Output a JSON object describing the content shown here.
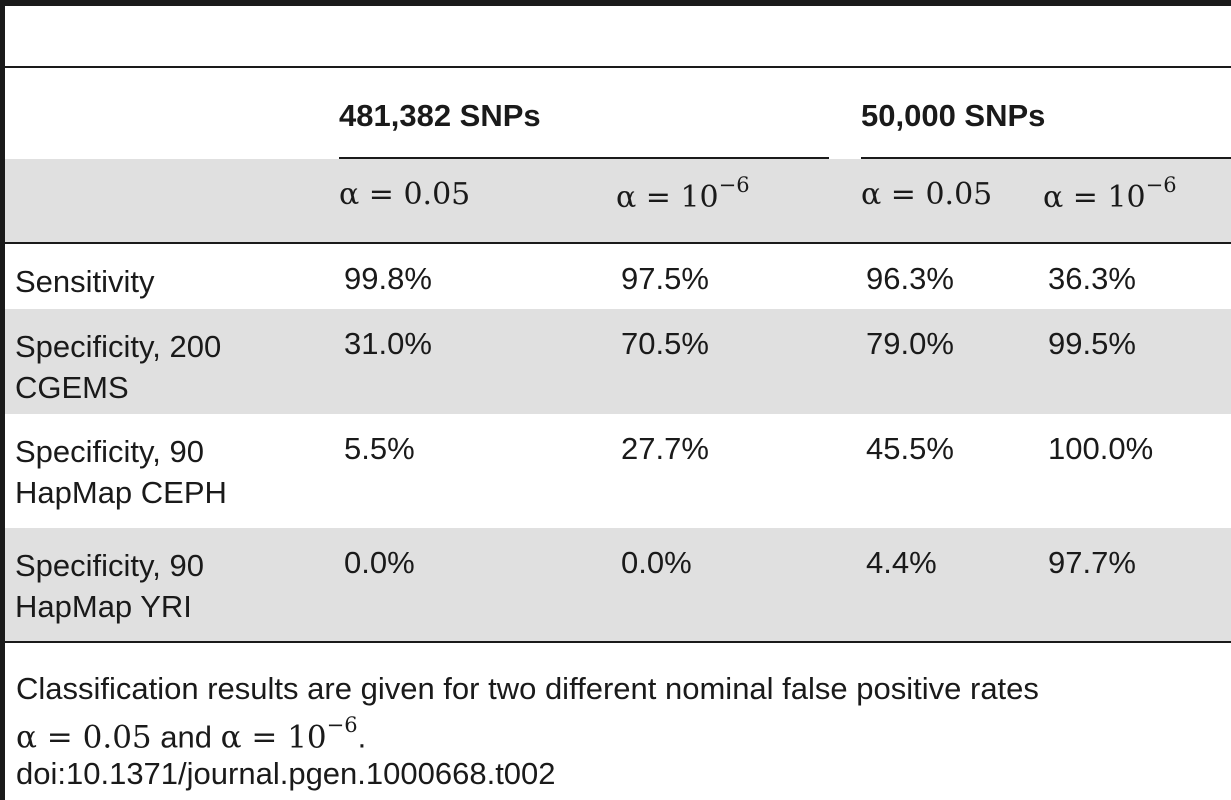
{
  "table": {
    "group_headers": [
      "481,382 SNPs",
      "50,000 SNPs"
    ],
    "alpha_headers": [
      {
        "label": "α = 0.05",
        "base": "α = 0.05",
        "sup": ""
      },
      {
        "label": "α = 10−6",
        "base": "α = 10",
        "sup": "−6"
      },
      {
        "label": "α = 0.05",
        "base": "α = 0.05",
        "sup": ""
      },
      {
        "label": "α = 10−6",
        "base": "α = 10",
        "sup": "−6"
      }
    ],
    "rows": [
      {
        "label": "Sensitivity",
        "values": [
          "99.8%",
          "97.5%",
          "96.3%",
          "36.3%"
        ]
      },
      {
        "label_line1": "Specificity, 200",
        "label_line2": "CGEMS",
        "values": [
          "31.0%",
          "70.5%",
          "79.0%",
          "99.5%"
        ]
      },
      {
        "label_line1": "Specificity, 90",
        "label_line2": "HapMap CEPH",
        "values": [
          "5.5%",
          "27.7%",
          "45.5%",
          "100.0%"
        ]
      },
      {
        "label_line1": "Specificity, 90",
        "label_line2": "HapMap YRI",
        "values": [
          "0.0%",
          "0.0%",
          "4.4%",
          "97.7%"
        ]
      }
    ]
  },
  "footnote": {
    "text1": "Classification results are given for two different nominal false positive rates",
    "alpha1": "α = 0.05",
    "and": " and ",
    "alpha2_base": "α = 10",
    "alpha2_sup": "−6",
    "end": "."
  },
  "doi": "doi:10.1371/journal.pgen.1000668.t002"
}
